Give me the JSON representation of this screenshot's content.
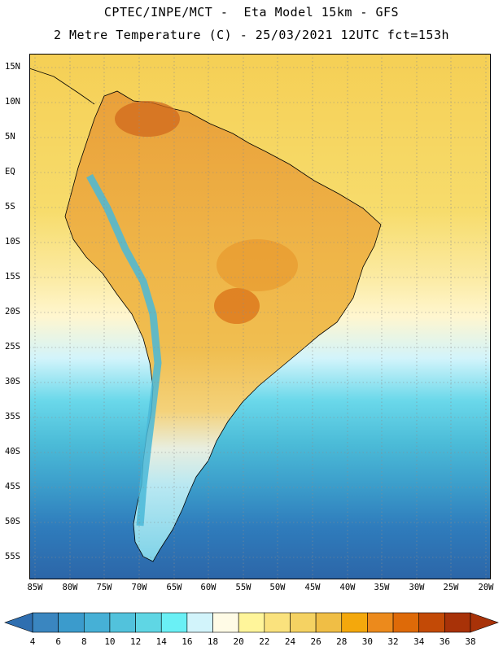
{
  "header": {
    "line1": "CPTEC/INPE/MCT -  Eta Model 15km - GFS",
    "line2": "2 Metre Temperature (C) - 25/03/2021 12UTC fct=153h"
  },
  "map": {
    "region": "South America",
    "lat_labels": [
      "15N",
      "10N",
      "5N",
      "EQ",
      "5S",
      "10S",
      "15S",
      "20S",
      "25S",
      "30S",
      "35S",
      "40S",
      "45S",
      "50S",
      "55S"
    ],
    "lon_labels": [
      "85W",
      "80W",
      "75W",
      "70W",
      "65W",
      "60W",
      "55W",
      "50W",
      "45W",
      "40W",
      "35W",
      "30W",
      "25W",
      "20W"
    ]
  },
  "colorbar": {
    "labels": [
      "4",
      "6",
      "8",
      "10",
      "12",
      "14",
      "16",
      "18",
      "20",
      "22",
      "24",
      "26",
      "28",
      "30",
      "32",
      "34",
      "36",
      "38"
    ],
    "colors": [
      "#2f6fb0",
      "#3a86c0",
      "#3b9bcc",
      "#46b0d6",
      "#52c2dc",
      "#5fd6e4",
      "#6af0f5",
      "#d2f4fb",
      "#fffbe6",
      "#fff59a",
      "#fae27d",
      "#f5d262",
      "#f0be45",
      "#f4a80c",
      "#ec8a1c",
      "#de6a08",
      "#c34a06",
      "#a83208"
    ]
  }
}
